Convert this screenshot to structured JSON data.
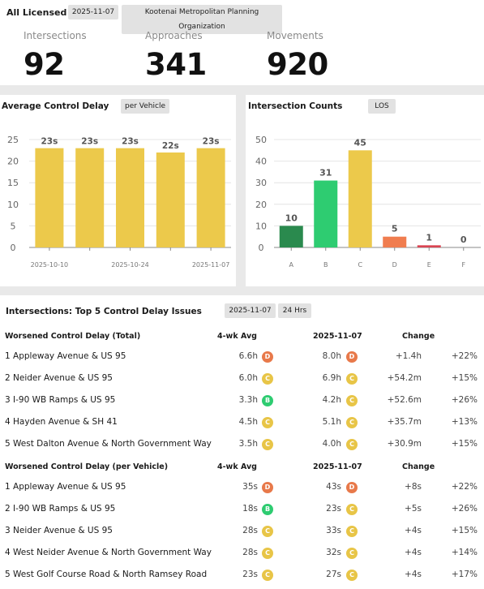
{
  "header": {
    "title": "All Licensed",
    "date_chip": "2025-11-07",
    "org_chip": "Kootenai Metropolitan Planning Organization"
  },
  "stats": [
    {
      "label": "Intersections",
      "value": "92"
    },
    {
      "label": "Approaches",
      "value": "341"
    },
    {
      "label": "Movements",
      "value": "920"
    }
  ],
  "delay_chart": {
    "title": "Average Control Delay",
    "chip": "per Vehicle"
  },
  "counts_chart": {
    "title": "Intersection Counts",
    "chip": "LOS"
  },
  "chart_data": [
    {
      "type": "bar",
      "title": "Average Control Delay",
      "categories": [
        "2025-10-10",
        "",
        "2025-10-24",
        "",
        "2025-11-07"
      ],
      "x_tick_labels": [
        "2025-10-10",
        "2025-10-24",
        "2025-11-07"
      ],
      "values": [
        23,
        23,
        23,
        22,
        23
      ],
      "data_labels": [
        "23s",
        "23s",
        "23s",
        "22s",
        "23s"
      ],
      "ylim": [
        0,
        25
      ],
      "yticks": [
        0,
        5,
        10,
        15,
        20,
        25
      ],
      "grid": true,
      "color": "#ecc94b"
    },
    {
      "type": "bar",
      "title": "Intersection Counts",
      "categories": [
        "A",
        "B",
        "C",
        "D",
        "E",
        "F"
      ],
      "values": [
        10,
        31,
        45,
        5,
        1,
        0
      ],
      "data_labels": [
        "10",
        "31",
        "45",
        "5",
        "1",
        "0"
      ],
      "ylim": [
        0,
        50
      ],
      "yticks": [
        0,
        10,
        20,
        30,
        40,
        50
      ],
      "grid": true,
      "colors": [
        "#2a8a4e",
        "#2ecc71",
        "#ecc94b",
        "#f07d4f",
        "#d94452",
        "#c0392b"
      ]
    }
  ],
  "table": {
    "title": "Intersections: Top 5 Control Delay Issues",
    "date_chip": "2025-11-07",
    "range_chip": "24 Hrs",
    "sections": [
      {
        "headers": {
          "name": "Worsened Control Delay (Total)",
          "avg": "4-wk Avg",
          "cur": "2025-11-07",
          "chg": "Change"
        },
        "rows": [
          {
            "name": "1  Appleway Avenue & US 95",
            "avg": "6.6h",
            "avg_los": "D",
            "cur": "8.0h",
            "cur_los": "D",
            "chg": "+1.4h",
            "pct": "+22%"
          },
          {
            "name": "2  Neider Avenue & US 95",
            "avg": "6.0h",
            "avg_los": "C",
            "cur": "6.9h",
            "cur_los": "C",
            "chg": "+54.2m",
            "pct": "+15%"
          },
          {
            "name": "3  I-90 WB Ramps & US 95",
            "avg": "3.3h",
            "avg_los": "B",
            "cur": "4.2h",
            "cur_los": "C",
            "chg": "+52.6m",
            "pct": "+26%"
          },
          {
            "name": "4  Hayden Avenue & SH 41",
            "avg": "4.5h",
            "avg_los": "C",
            "cur": "5.1h",
            "cur_los": "C",
            "chg": "+35.7m",
            "pct": "+13%"
          },
          {
            "name": "5  West Dalton Avenue & North Government Way",
            "avg": "3.5h",
            "avg_los": "C",
            "cur": "4.0h",
            "cur_los": "C",
            "chg": "+30.9m",
            "pct": "+15%"
          }
        ]
      },
      {
        "headers": {
          "name": "Worsened Control Delay (per Vehicle)",
          "avg": "4-wk Avg",
          "cur": "2025-11-07",
          "chg": "Change"
        },
        "rows": [
          {
            "name": "1  Appleway Avenue & US 95",
            "avg": "35s",
            "avg_los": "D",
            "cur": "43s",
            "cur_los": "D",
            "chg": "+8s",
            "pct": "+22%"
          },
          {
            "name": "2  I-90 WB Ramps & US 95",
            "avg": "18s",
            "avg_los": "B",
            "cur": "23s",
            "cur_los": "C",
            "chg": "+5s",
            "pct": "+26%"
          },
          {
            "name": "3  Neider Avenue & US 95",
            "avg": "28s",
            "avg_los": "C",
            "cur": "33s",
            "cur_los": "C",
            "chg": "+4s",
            "pct": "+15%"
          },
          {
            "name": "4  West Neider Avenue & North Government Way",
            "avg": "28s",
            "avg_los": "C",
            "cur": "32s",
            "cur_los": "C",
            "chg": "+4s",
            "pct": "+14%"
          },
          {
            "name": "5  West Golf Course Road & North Ramsey Road",
            "avg": "23s",
            "avg_los": "C",
            "cur": "27s",
            "cur_los": "C",
            "chg": "+4s",
            "pct": "+17%"
          }
        ]
      }
    ]
  },
  "los_colors": {
    "A": "#2a8a4e",
    "B": "#2ecc71",
    "C": "#e8c547",
    "D": "#e8794a",
    "E": "#d94452",
    "F": "#c0392b"
  }
}
